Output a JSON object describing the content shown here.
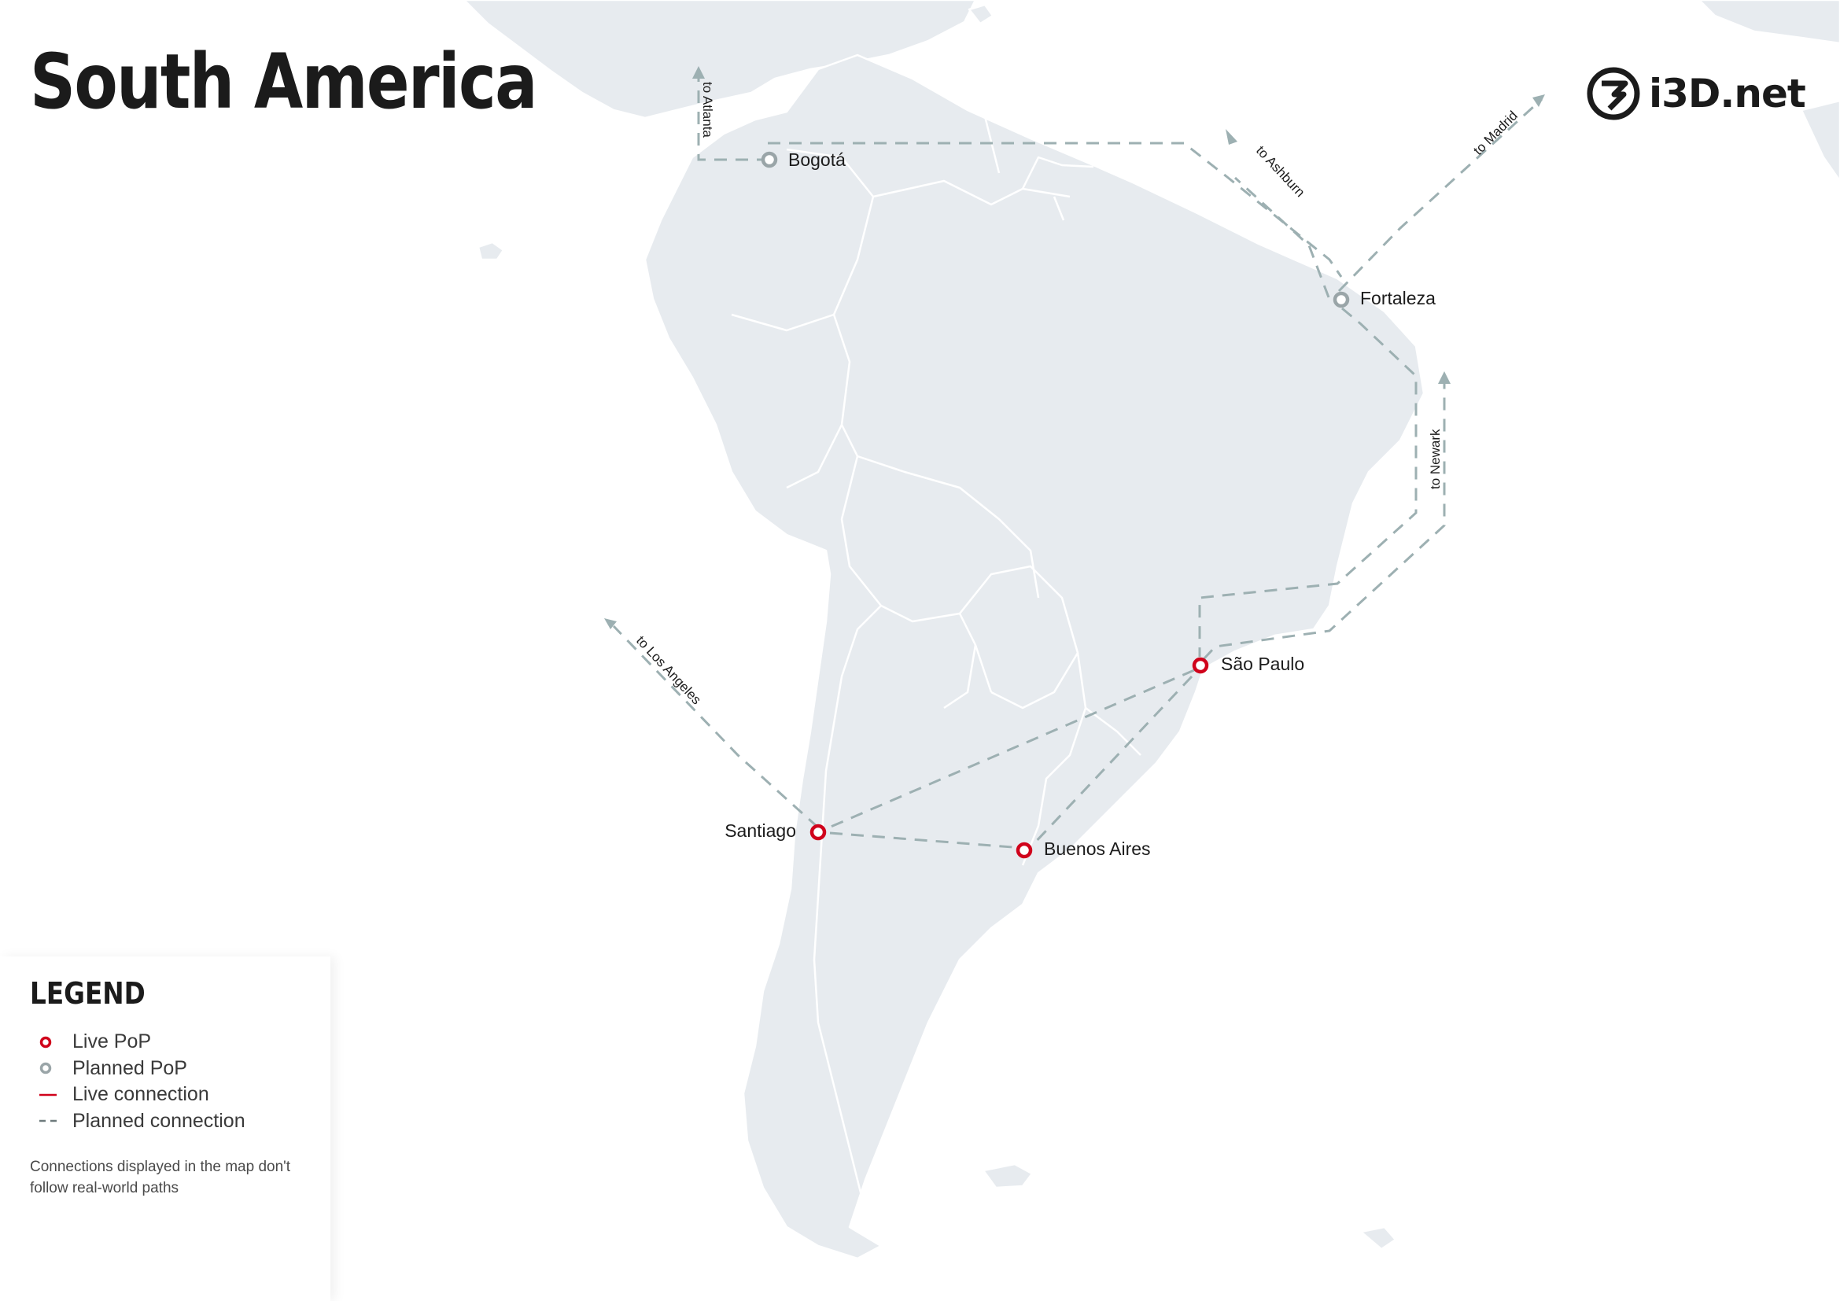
{
  "title": "South America",
  "brand": {
    "name": "i3D.net",
    "mark_icon": "i3d-logo-icon"
  },
  "colors": {
    "land": "#e7ebef",
    "route": "#9db0b2",
    "live": "#d0021b",
    "planned": "#9aa5a8"
  },
  "pops": [
    {
      "name": "Bogotá",
      "status": "planned"
    },
    {
      "name": "Fortaleza",
      "status": "planned"
    },
    {
      "name": "São Paulo",
      "status": "live"
    },
    {
      "name": "Santiago",
      "status": "live"
    },
    {
      "name": "Buenos Aires",
      "status": "live"
    }
  ],
  "external_routes": [
    {
      "label": "to Atlanta"
    },
    {
      "label": "to Ashburn"
    },
    {
      "label": "to Madrid"
    },
    {
      "label": "to Newark"
    },
    {
      "label": "to Los Angeles"
    }
  ],
  "legend": {
    "heading": "LEGEND",
    "items": [
      {
        "label": "Live PoP",
        "symbol": "live-pop"
      },
      {
        "label": "Planned PoP",
        "symbol": "planned-pop"
      },
      {
        "label": "Live connection",
        "symbol": "live-connection"
      },
      {
        "label": "Planned connection",
        "symbol": "planned-connection"
      }
    ],
    "note": "Connections displayed in the map don't follow real-world paths"
  }
}
